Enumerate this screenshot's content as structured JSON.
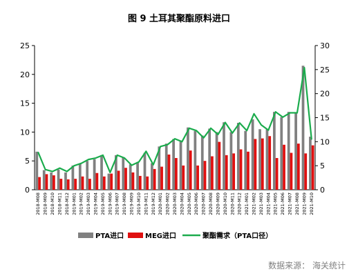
{
  "chart_data": {
    "type": "bar",
    "title": "图  9 土耳其聚酯原料进口",
    "categories": [
      "2018-M08",
      "2018-M09",
      "2018-M10",
      "2018-M11",
      "2018-M12",
      "2019-M01",
      "2019-M02",
      "2019-M03",
      "2019-M04",
      "2019-M05",
      "2019-M06",
      "2019-M07",
      "2019-M08",
      "2019-M09",
      "2019-M10",
      "2019-M11",
      "2019-M12",
      "2020-M01",
      "2020-M02",
      "2020-M03",
      "2020-M04",
      "2020-M05",
      "2020-M06",
      "2020-M07",
      "2020-M08",
      "2020-M09",
      "2020-M10",
      "2020-M11",
      "2020-M12",
      "2021-M01",
      "2021-M02",
      "2021-M03",
      "2021-M04",
      "2021-M05",
      "2021-M06",
      "2021-M07",
      "2021-M08",
      "2021-M09",
      "2021-M10"
    ],
    "left_axis": {
      "ylim": [
        0,
        25
      ],
      "ticks": [
        0,
        5,
        10,
        15,
        20,
        25
      ]
    },
    "right_axis": {
      "ylim": [
        0,
        30
      ],
      "ticks": [
        0,
        5,
        10,
        15,
        20,
        25,
        30
      ]
    },
    "series": [
      {
        "name": "PTA进口",
        "type": "bar",
        "axis": "left",
        "color": "#808080",
        "values": [
          6.6,
          3.4,
          3.0,
          3.5,
          3.0,
          4.2,
          4.5,
          5.0,
          5.3,
          6.0,
          2.8,
          6.0,
          5.6,
          4.4,
          4.8,
          6.4,
          4.6,
          7.5,
          8.0,
          8.8,
          8.4,
          10.8,
          10.2,
          9.4,
          10.6,
          10.0,
          11.7,
          10.0,
          11.6,
          10.2,
          12.2,
          10.5,
          10.5,
          13.5,
          12.6,
          13.5,
          13.3,
          21.5,
          9.2
        ]
      },
      {
        "name": "MEG进口",
        "type": "bar",
        "axis": "left",
        "color": "#e01010",
        "values": [
          2.2,
          2.7,
          2.5,
          1.9,
          1.8,
          1.9,
          2.3,
          1.9,
          2.9,
          2.3,
          2.8,
          3.3,
          3.8,
          3.0,
          2.4,
          2.3,
          3.6,
          4.0,
          6.1,
          5.5,
          4.2,
          6.8,
          4.2,
          5.0,
          5.8,
          8.3,
          6.0,
          6.3,
          7.0,
          6.6,
          8.8,
          8.9,
          9.3,
          5.5,
          7.8,
          6.4,
          8.0,
          6.3,
          7.7
        ]
      },
      {
        "name": "聚酯需求（PTA口径）",
        "type": "line",
        "axis": "right",
        "color": "#1aab4c",
        "values": [
          7.8,
          4.2,
          3.8,
          4.5,
          3.8,
          5.0,
          5.5,
          6.3,
          6.6,
          7.2,
          3.6,
          7.2,
          6.6,
          5.1,
          5.8,
          8.0,
          5.2,
          9.0,
          9.4,
          10.6,
          10.0,
          12.8,
          12.3,
          10.8,
          12.8,
          11.5,
          14.0,
          11.8,
          13.9,
          12.3,
          15.8,
          13.5,
          12.4,
          16.2,
          15.1,
          16.0,
          16.0,
          25.4,
          10.5
        ]
      }
    ],
    "source": "数据来源：  海关统计"
  }
}
